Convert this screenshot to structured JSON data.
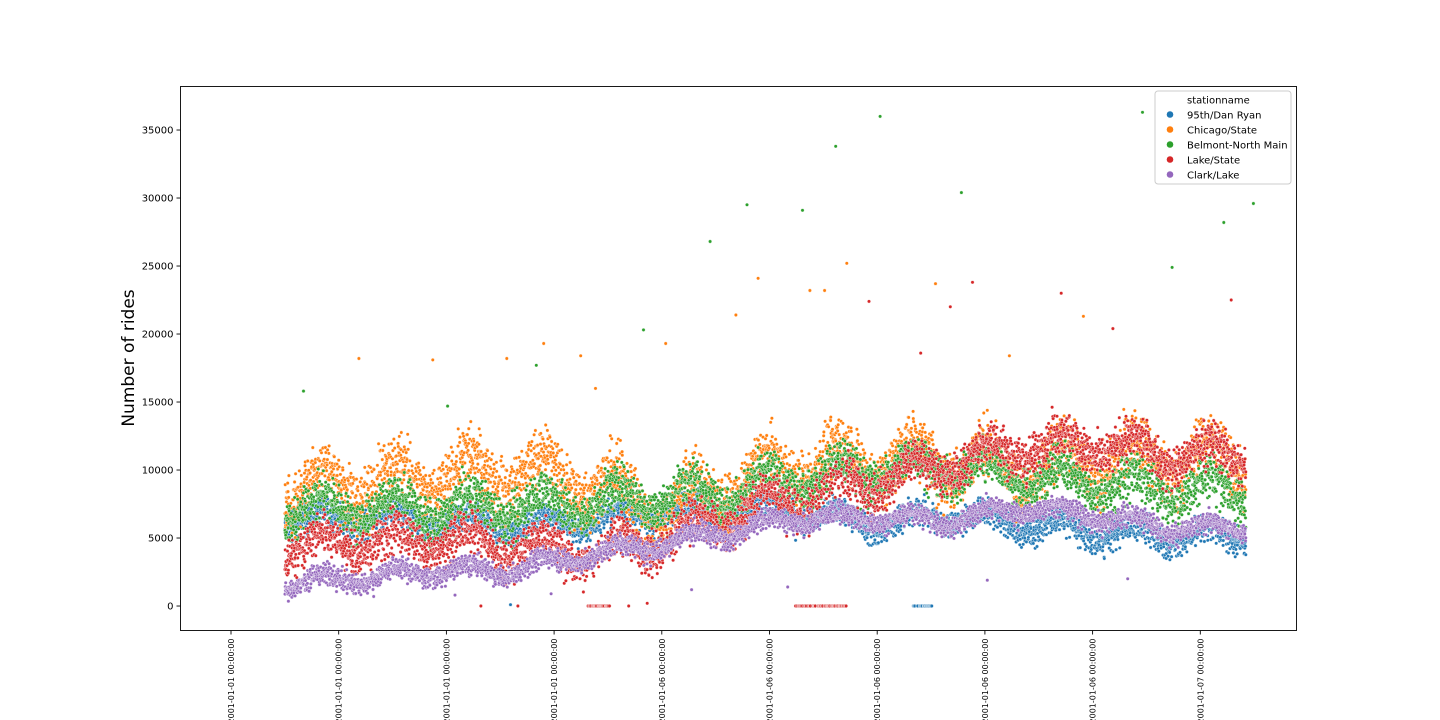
{
  "chart_data": {
    "type": "scatter",
    "title": "",
    "xlabel": "",
    "ylabel": "Number of rides",
    "ylim": [
      -1800,
      38200
    ],
    "yticks": [
      0,
      5000,
      10000,
      15000,
      20000,
      25000,
      30000,
      35000
    ],
    "xtick_labels": [
      "2001-01-01 00:00:00",
      "2001-01-01 00:00:00",
      "2001-01-01 00:00:00",
      "2001-01-01 00:00:00",
      "2001-01-06 00:00:00",
      "2001-01-06 00:00:00",
      "2001-01-06 00:00:00",
      "2001-01-06 00:00:00",
      "2001-01-06 00:00:00",
      "2001-01-07 00:00:00"
    ],
    "grid": false,
    "legend": {
      "title": "stationname",
      "placement": "top-right"
    },
    "series": [
      {
        "name": "95th/Dan Ryan",
        "color": "#1f77b4",
        "points_per_year": 300,
        "base_by_year": [
          6500,
          6600,
          6400,
          6200,
          6300,
          7000,
          7300,
          7100,
          6200,
          6900,
          6200,
          5600,
          5400
        ],
        "variation": 1200,
        "zero_spans": [
          {
            "start_year": 8.5,
            "end_year": 8.75
          }
        ],
        "outliers": [
          [
            3.05,
            100
          ]
        ]
      },
      {
        "name": "Chicago/State",
        "color": "#ff7f0e",
        "points_per_year": 300,
        "base_by_year": [
          8800,
          9500,
          9800,
          10200,
          9800,
          7500,
          9200,
          10800,
          11200,
          11000,
          10500,
          11000,
          11200
        ],
        "variation": 2600,
        "zero_spans": [],
        "outliers": [
          [
            1.0,
            18200
          ],
          [
            2.0,
            18100
          ],
          [
            3.0,
            18200
          ],
          [
            3.5,
            19300
          ],
          [
            4.0,
            18400
          ],
          [
            4.2,
            16000
          ],
          [
            5.15,
            19300
          ],
          [
            6.1,
            21400
          ],
          [
            6.4,
            24100
          ],
          [
            7.1,
            23200
          ],
          [
            7.3,
            23200
          ],
          [
            7.6,
            25200
          ],
          [
            8.8,
            23700
          ],
          [
            9.8,
            18400
          ],
          [
            10.8,
            21300
          ]
        ]
      },
      {
        "name": "Belmont-North Main",
        "color": "#2ca02c",
        "points_per_year": 300,
        "base_by_year": [
          7200,
          7500,
          7300,
          7600,
          7800,
          8300,
          8600,
          9600,
          10200,
          10500,
          9800,
          9200,
          8800
        ],
        "variation": 1900,
        "zero_spans": [],
        "outliers": [
          [
            0.25,
            15800
          ],
          [
            2.2,
            14700
          ],
          [
            3.4,
            17700
          ],
          [
            4.85,
            20300
          ],
          [
            5.75,
            26800
          ],
          [
            6.25,
            29500
          ],
          [
            7.0,
            29100
          ],
          [
            7.45,
            33800
          ],
          [
            8.05,
            36000
          ],
          [
            9.15,
            30400
          ],
          [
            11.6,
            36300
          ],
          [
            12.0,
            24900
          ],
          [
            12.7,
            28200
          ],
          [
            13.1,
            29600
          ]
        ]
      },
      {
        "name": "Lake/State",
        "color": "#d62728",
        "points_per_year": 300,
        "base_by_year": [
          4600,
          5000,
          5100,
          4700,
          4200,
          4900,
          6900,
          8300,
          9400,
          10800,
          12000,
          12200,
          11400
        ],
        "variation": 1800,
        "zero_spans": [
          {
            "start_year": 4.1,
            "end_year": 4.4
          },
          {
            "start_year": 6.9,
            "end_year": 7.6
          }
        ],
        "outliers": [
          [
            2.65,
            0
          ],
          [
            3.15,
            0
          ],
          [
            4.65,
            0
          ],
          [
            4.9,
            200
          ],
          [
            7.9,
            22400
          ],
          [
            8.6,
            18600
          ],
          [
            9.0,
            22000
          ],
          [
            9.3,
            23800
          ],
          [
            10.5,
            23000
          ],
          [
            11.2,
            20400
          ],
          [
            12.8,
            22500
          ]
        ]
      },
      {
        "name": "Clark/Lake",
        "color": "#9467bd",
        "points_per_year": 300,
        "base_by_year": [
          1800,
          2200,
          2700,
          2700,
          3800,
          4600,
          5600,
          6600,
          6600,
          6400,
          7400,
          6700,
          5900
        ],
        "variation": 900,
        "zero_spans": [],
        "outliers": [
          [
            1.2,
            700
          ],
          [
            2.3,
            800
          ],
          [
            3.6,
            900
          ],
          [
            5.5,
            1200
          ],
          [
            6.8,
            1400
          ],
          [
            9.5,
            1900
          ],
          [
            11.4,
            2000
          ]
        ]
      }
    ]
  }
}
